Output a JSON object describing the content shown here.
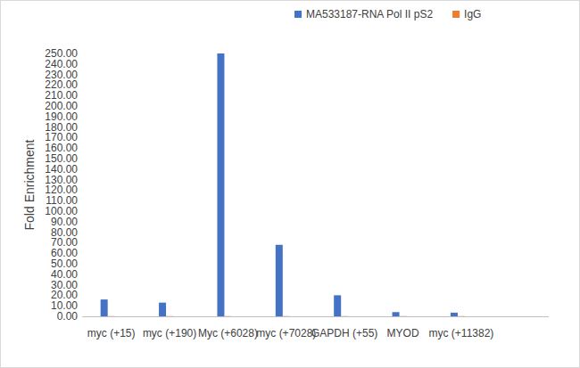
{
  "chart_data": {
    "type": "bar",
    "y_label": "Fold Enrichment",
    "categories": [
      "myc (+15)",
      "myc (+190)",
      "Myc (+6028)",
      "myc (+7028)",
      "GAPDH (+55)",
      "MYOD",
      "myc (+11382)",
      null
    ],
    "series": [
      {
        "name": "MA533187-RNA Pol II pS2",
        "color": "#4472c4",
        "values": [
          16,
          13,
          250,
          68,
          20,
          4,
          3.5,
          null
        ]
      },
      {
        "name": "IgG",
        "color": "#ed7d31",
        "values": [
          0.2,
          0.2,
          0.2,
          0.2,
          0.2,
          0.2,
          0.2,
          null
        ]
      }
    ],
    "ylim": [
      0,
      250
    ],
    "yticks": [
      {
        "value": 0,
        "label": "0.00"
      },
      {
        "value": 10,
        "label": "10.00"
      },
      {
        "value": 20,
        "label": "20.00"
      },
      {
        "value": 30,
        "label": "30.00"
      },
      {
        "value": 40,
        "label": "40.00"
      },
      {
        "value": 50,
        "label": "50.00"
      },
      {
        "value": 60,
        "label": "60.00"
      },
      {
        "value": 70,
        "label": "70.00"
      },
      {
        "value": 80,
        "label": "80.00"
      },
      {
        "value": 90,
        "label": "90.00"
      },
      {
        "value": 100,
        "label": "100.00"
      },
      {
        "value": 110,
        "label": "110.00"
      },
      {
        "value": 120,
        "label": "120.00"
      },
      {
        "value": 130,
        "label": "130.00"
      },
      {
        "value": 140,
        "label": "140.00"
      },
      {
        "value": 150,
        "label": "150.00"
      },
      {
        "value": 160,
        "label": "160.00"
      },
      {
        "value": 170,
        "label": "170.00"
      },
      {
        "value": 180,
        "label": "180.00"
      },
      {
        "value": 190,
        "label": "190.00"
      },
      {
        "value": 200,
        "label": "200.00"
      },
      {
        "value": 210,
        "label": "210.00"
      },
      {
        "value": 220,
        "label": "220.00"
      },
      {
        "value": 230,
        "label": "230.00"
      },
      {
        "value": 240,
        "label": "240.00"
      },
      {
        "value": 250,
        "label": "250.00"
      }
    ],
    "grid": false,
    "legend": "top-right"
  }
}
